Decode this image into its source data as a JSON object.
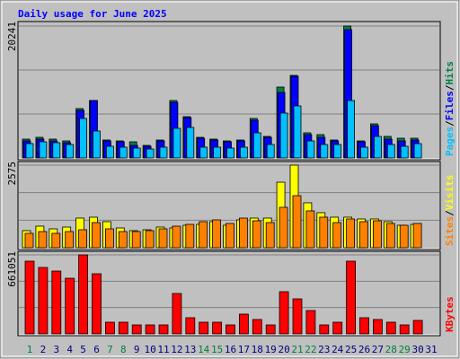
{
  "chart_data": [
    {
      "type": "bar",
      "title": "Daily usage for June 2025",
      "ylim": [
        0,
        20241
      ],
      "yticks": [
        20241
      ],
      "grid_divisions": 3,
      "series": [
        {
          "name": "Hits",
          "color": "#008040",
          "values": [
            2892,
            3167,
            2892,
            2616,
            7573,
            8812,
            2754,
            2616,
            2478,
            1928,
            2754,
            8812,
            6334,
            3167,
            2892,
            2616,
            2754,
            6059,
            3305,
            10878,
            12668,
            3856,
            3580,
            2754,
            20241,
            2616,
            5232,
            3305,
            3030,
            3030,
            null
          ]
        },
        {
          "name": "Files",
          "color": "#0000ff",
          "values": [
            2616,
            2892,
            2616,
            2341,
            7298,
            8812,
            2616,
            2478,
            1928,
            1790,
            2616,
            8537,
            6196,
            3030,
            2754,
            2478,
            2616,
            5783,
            3167,
            10052,
            12530,
            3580,
            3167,
            2616,
            19690,
            2478,
            4957,
            2892,
            2616,
            2754,
            null
          ]
        },
        {
          "name": "Pages",
          "color": "#00c0ff",
          "values": [
            2203,
            2478,
            2341,
            2065,
            6059,
            4131,
            1790,
            1653,
            1515,
            1377,
            1653,
            4544,
            4682,
            1653,
            1653,
            1515,
            1653,
            3856,
            2065,
            6885,
            7986,
            2616,
            2065,
            2065,
            8812,
            1653,
            3305,
            2065,
            1790,
            2203,
            null
          ]
        }
      ]
    },
    {
      "type": "bar",
      "ylim": [
        0,
        2575
      ],
      "yticks": [
        2575
      ],
      "grid_divisions": 3,
      "series": [
        {
          "name": "Visits",
          "color": "#ffff00",
          "values": [
            532,
            672,
            588,
            644,
            924,
            952,
            812,
            616,
            532,
            560,
            644,
            616,
            700,
            728,
            812,
            700,
            868,
            924,
            924,
            2043,
            2575,
            1400,
            1092,
            952,
            952,
            896,
            896,
            812,
            700,
            728,
            null
          ]
        },
        {
          "name": "Sites",
          "color": "#ff8000",
          "values": [
            448,
            504,
            448,
            504,
            560,
            784,
            588,
            504,
            504,
            532,
            588,
            672,
            728,
            812,
            868,
            756,
            924,
            840,
            784,
            1260,
            1623,
            1148,
            952,
            784,
            896,
            812,
            840,
            756,
            700,
            756,
            null
          ]
        }
      ]
    },
    {
      "type": "bar",
      "ylim": [
        0,
        661051
      ],
      "yticks": [
        661051
      ],
      "grid_divisions": 3,
      "categories": [
        "1",
        "2",
        "3",
        "4",
        "5",
        "6",
        "7",
        "8",
        "9",
        "10",
        "11",
        "12",
        "13",
        "14",
        "15",
        "16",
        "17",
        "18",
        "19",
        "20",
        "21",
        "22",
        "23",
        "24",
        "25",
        "26",
        "27",
        "28",
        "29",
        "30",
        "31"
      ],
      "category_colors": [
        "#008040",
        "#000080",
        "#000080",
        "#000080",
        "#000080",
        "#000080",
        "#008040",
        "#008040",
        "#000080",
        "#000080",
        "#000080",
        "#000080",
        "#000080",
        "#008040",
        "#008040",
        "#000080",
        "#000080",
        "#000080",
        "#000080",
        "#000080",
        "#008040",
        "#008040",
        "#000080",
        "#000080",
        "#000080",
        "#000080",
        "#000080",
        "#008040",
        "#008040",
        "#000080",
        "#000080"
      ],
      "series": [
        {
          "name": "KBytes",
          "color": "#ff0000",
          "values": [
            608500,
            555900,
            525800,
            465700,
            661051,
            503300,
            97700,
            97700,
            75100,
            75100,
            75100,
            338000,
            135200,
            97700,
            97700,
            75100,
            165300,
            120200,
            75100,
            353100,
            293000,
            195300,
            75100,
            97700,
            608500,
            135200,
            120200,
            97700,
            75100,
            112700,
            null
          ]
        }
      ]
    }
  ],
  "legend_separator": "/"
}
